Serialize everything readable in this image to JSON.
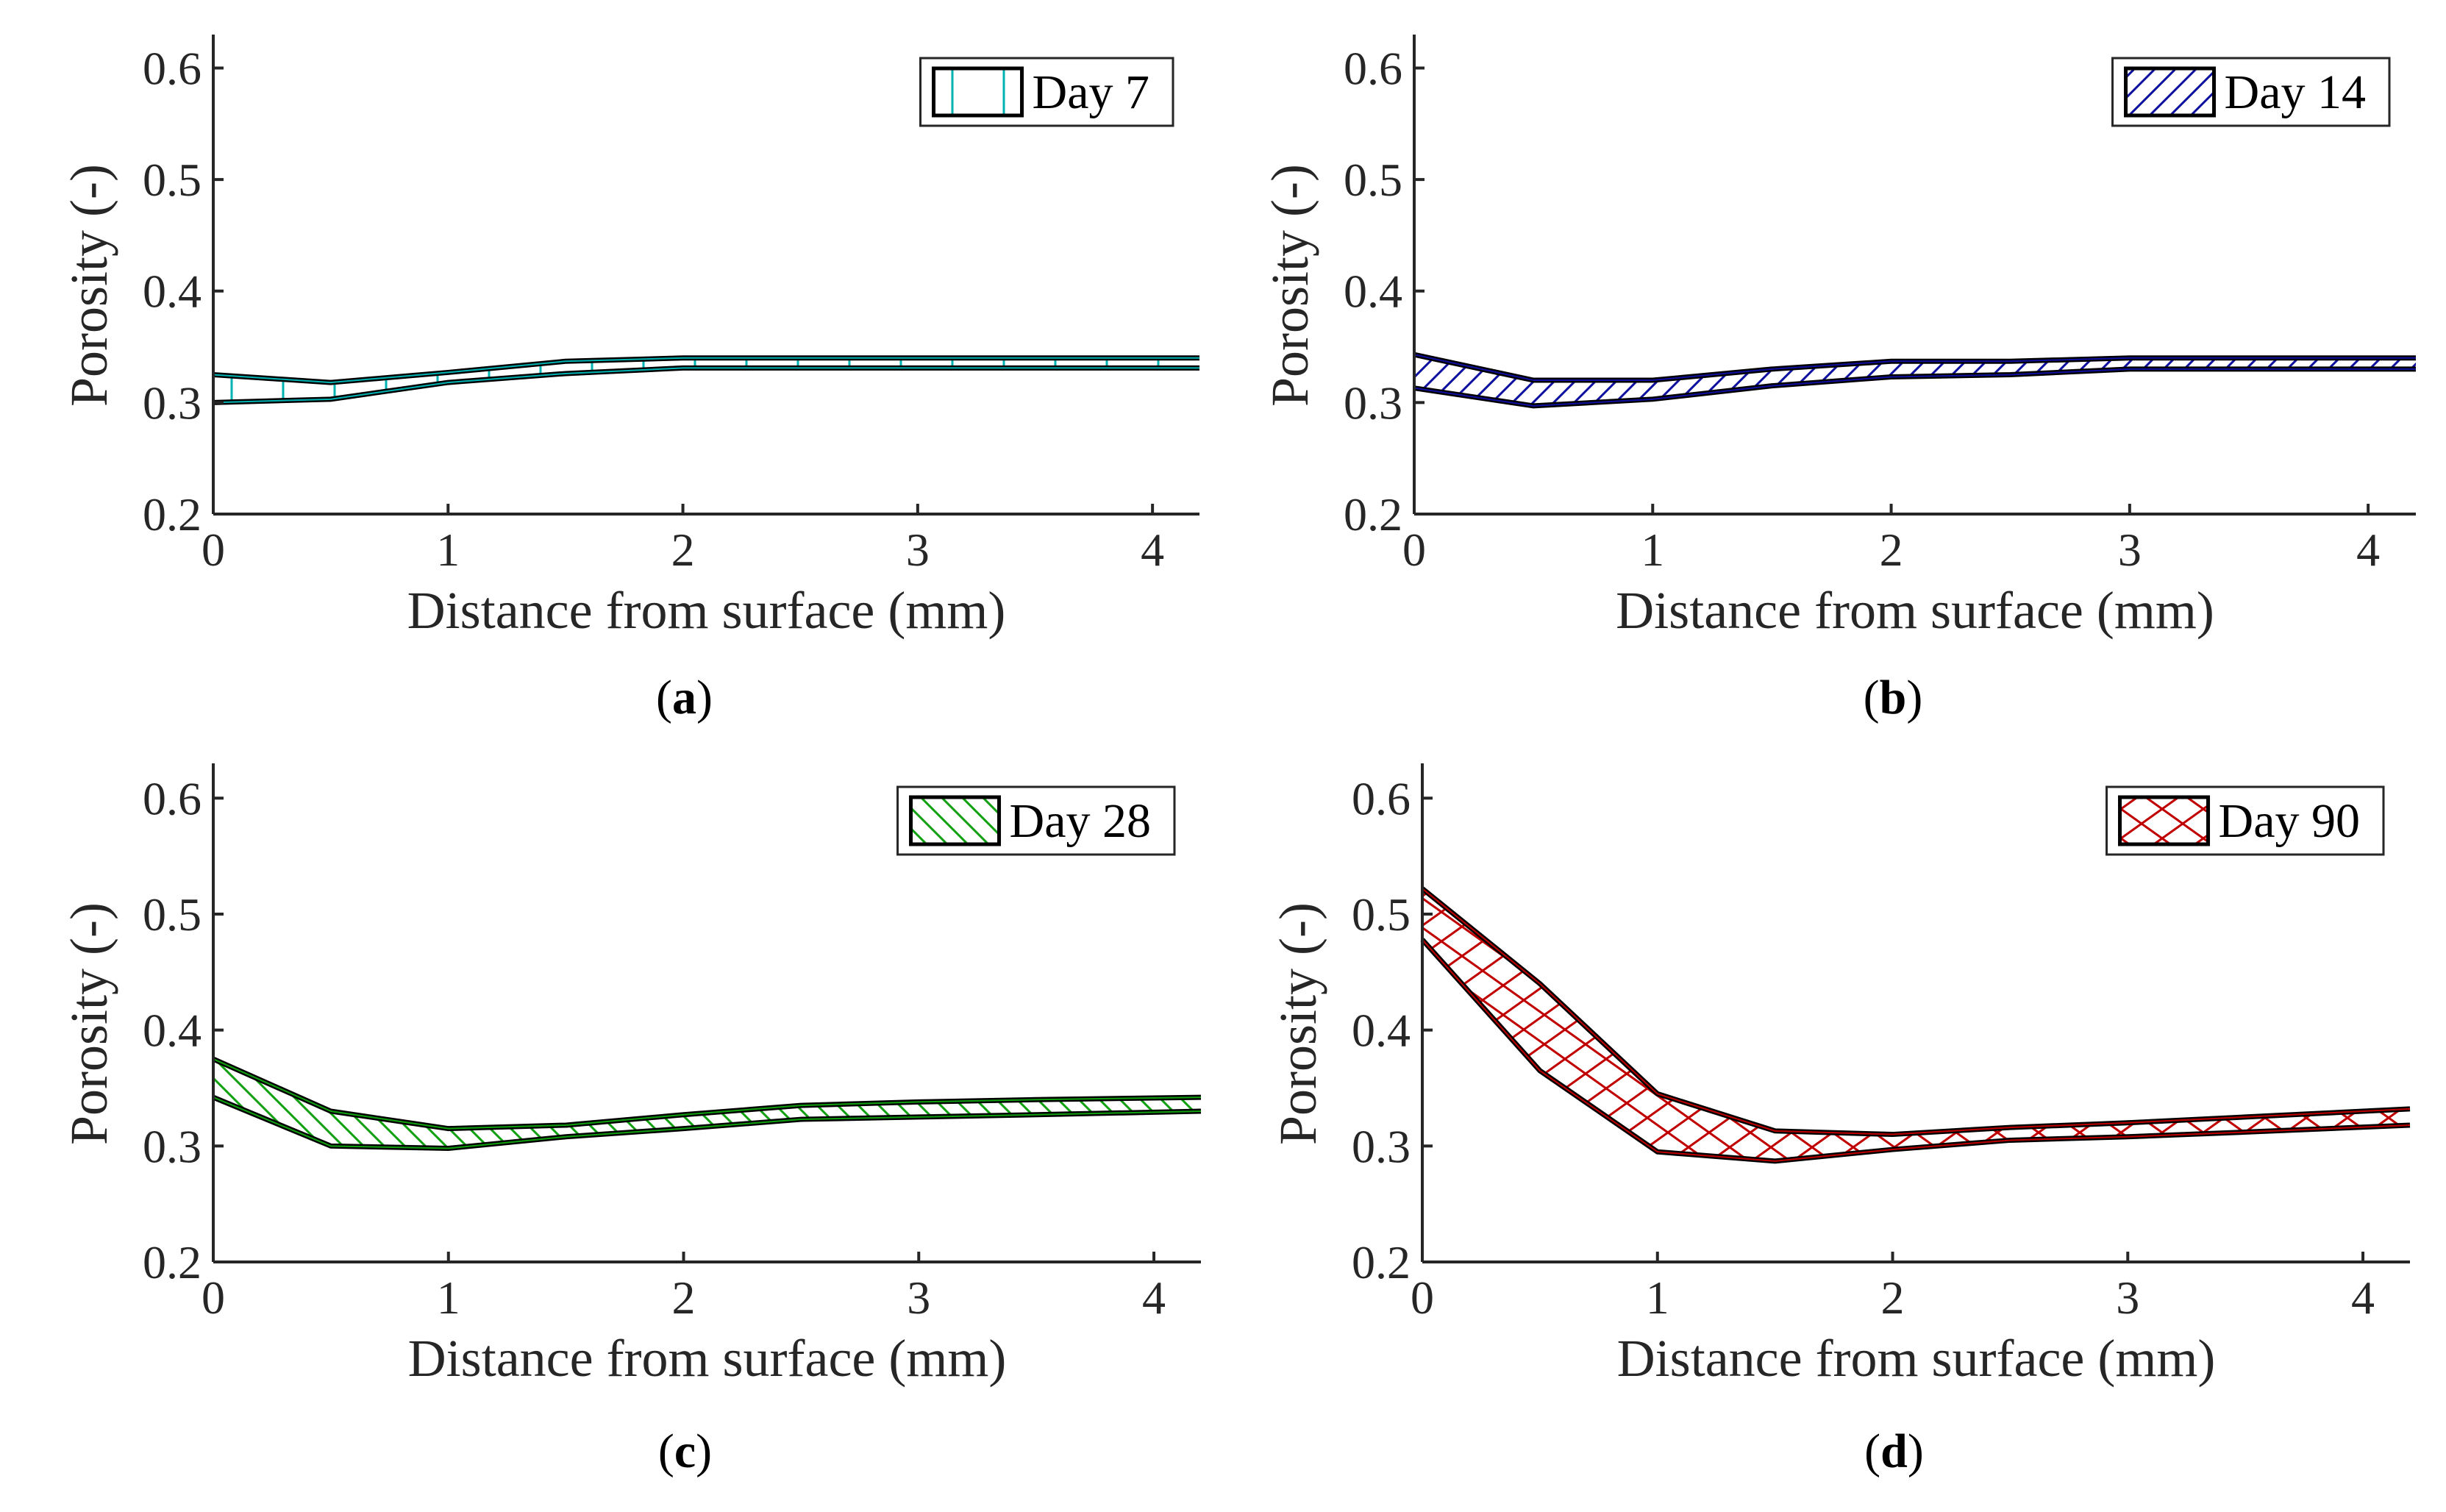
{
  "chart_data": [
    {
      "type": "area",
      "panel_label": "a",
      "legend": "Day 7",
      "color": "#00b3b3",
      "pattern": "vertical",
      "xlabel": "Distance from surface (mm)",
      "ylabel": "Porosity (-)",
      "xlim": [
        0,
        4.2
      ],
      "ylim": [
        0.2,
        0.63
      ],
      "xticks": [
        "0",
        "1",
        "2",
        "3",
        "4"
      ],
      "yticks": [
        "0.2",
        "0.3",
        "0.4",
        "0.5",
        "0.6"
      ],
      "x": [
        0,
        0.5,
        1,
        1.5,
        2,
        2.5,
        3,
        3.5,
        4.2
      ],
      "upper": [
        0.325,
        0.318,
        0.327,
        0.337,
        0.34,
        0.34,
        0.34,
        0.34,
        0.34
      ],
      "lower": [
        0.3,
        0.303,
        0.318,
        0.326,
        0.331,
        0.331,
        0.331,
        0.331,
        0.331
      ]
    },
    {
      "type": "area",
      "panel_label": "b",
      "legend": "Day 14",
      "color": "#1010a0",
      "pattern": "diag-up",
      "xlabel": "Distance from surface (mm)",
      "ylabel": "Porosity (-)",
      "xlim": [
        0,
        4.2
      ],
      "ylim": [
        0.2,
        0.63
      ],
      "xticks": [
        "0",
        "1",
        "2",
        "3",
        "4"
      ],
      "yticks": [
        "0.2",
        "0.3",
        "0.4",
        "0.5",
        "0.6"
      ],
      "x": [
        0,
        0.5,
        1,
        1.5,
        2,
        2.5,
        3,
        3.5,
        4.2
      ],
      "upper": [
        0.343,
        0.32,
        0.32,
        0.33,
        0.337,
        0.337,
        0.34,
        0.34,
        0.34
      ],
      "lower": [
        0.313,
        0.297,
        0.303,
        0.315,
        0.323,
        0.325,
        0.33,
        0.33,
        0.33
      ]
    },
    {
      "type": "area",
      "panel_label": "c",
      "legend": "Day 28",
      "color": "#10a010",
      "pattern": "diag-down",
      "xlabel": "Distance from surface (mm)",
      "ylabel": "Porosity (-)",
      "xlim": [
        0,
        4.2
      ],
      "ylim": [
        0.2,
        0.63
      ],
      "xticks": [
        "0",
        "1",
        "2",
        "3",
        "4"
      ],
      "yticks": [
        "0.2",
        "0.3",
        "0.4",
        "0.5",
        "0.6"
      ],
      "x": [
        0,
        0.5,
        1,
        1.5,
        2,
        2.5,
        3,
        3.5,
        4.2
      ],
      "upper": [
        0.375,
        0.33,
        0.315,
        0.318,
        0.327,
        0.335,
        0.338,
        0.34,
        0.342
      ],
      "lower": [
        0.342,
        0.3,
        0.298,
        0.308,
        0.315,
        0.323,
        0.325,
        0.327,
        0.33
      ]
    },
    {
      "type": "area",
      "panel_label": "d",
      "legend": "Day 90",
      "color": "#c00000",
      "pattern": "crosshatch",
      "xlabel": "Distance from surface (mm)",
      "ylabel": "Porosity (-)",
      "xlim": [
        0,
        4.2
      ],
      "ylim": [
        0.2,
        0.63
      ],
      "xticks": [
        "0",
        "1",
        "2",
        "3",
        "4"
      ],
      "yticks": [
        "0.2",
        "0.3",
        "0.4",
        "0.5",
        "0.6"
      ],
      "x": [
        0,
        0.5,
        1,
        1.5,
        2,
        2.5,
        3,
        3.5,
        4.2
      ],
      "upper": [
        0.522,
        0.44,
        0.345,
        0.313,
        0.31,
        0.316,
        0.32,
        0.325,
        0.332
      ],
      "lower": [
        0.478,
        0.365,
        0.295,
        0.287,
        0.297,
        0.305,
        0.308,
        0.312,
        0.318
      ]
    }
  ]
}
